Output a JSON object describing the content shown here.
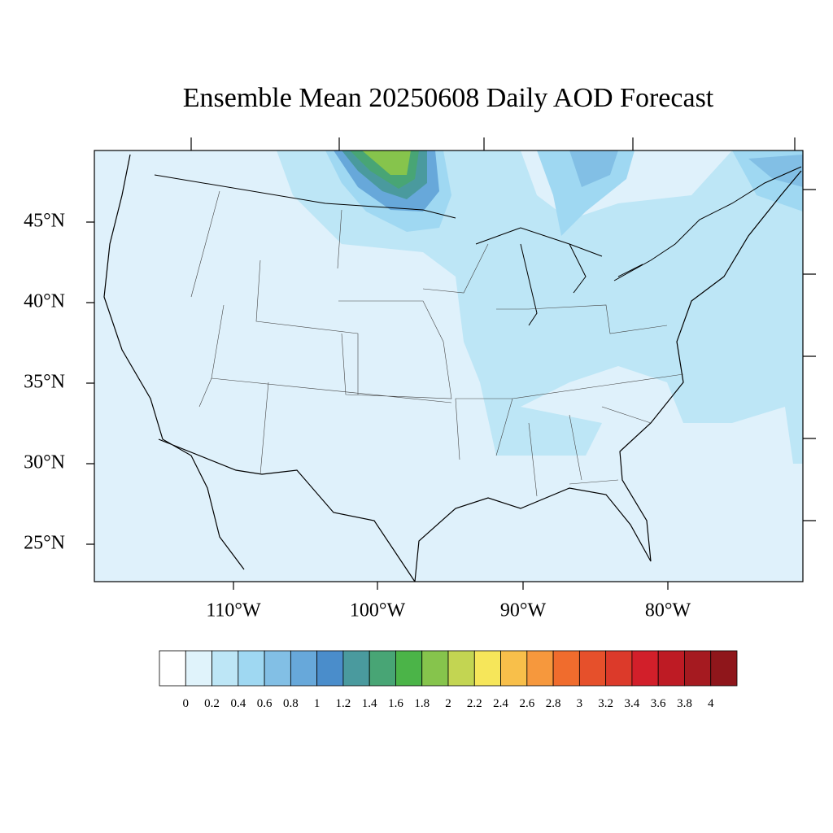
{
  "title": "Ensemble Mean 20250608 Daily AOD Forecast",
  "map": {
    "lat_labels": [
      "45°N",
      "40°N",
      "35°N",
      "30°N",
      "25°N"
    ],
    "lon_labels": [
      "110°W",
      "100°W",
      "90°W",
      "80°W"
    ]
  },
  "colorbar": {
    "levels": [
      0,
      0.2,
      0.4,
      0.6,
      0.8,
      1,
      1.2,
      1.4,
      1.6,
      1.8,
      2,
      2.2,
      2.4,
      2.6,
      2.8,
      3,
      3.2,
      3.4,
      3.6,
      3.8,
      4
    ],
    "colors": [
      "#ffffff",
      "#e0f3fb",
      "#bde6f6",
      "#9fd8f2",
      "#82bfe5",
      "#67a8da",
      "#4a8dcb",
      "#4a9a9e",
      "#48a575",
      "#4bb448",
      "#86c44c",
      "#c3d552",
      "#f6e65a",
      "#f8bf4a",
      "#f6983d",
      "#f06c2d",
      "#e6502b",
      "#dc3a2a",
      "#d21f2a",
      "#be1b24",
      "#a51a20",
      "#8f161b"
    ]
  }
}
